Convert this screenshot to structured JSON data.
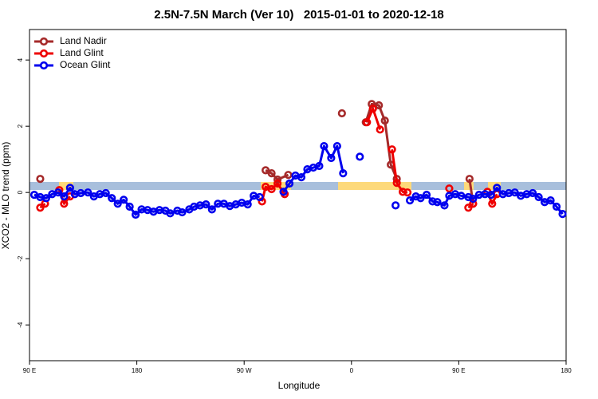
{
  "chart_data": {
    "type": "line",
    "title": "2.5N-7.5N March (Ver 10)   2015-01-01 to 2020-12-18",
    "xlabel": "Longitude",
    "ylabel": "XCO2 - MLO trend (ppm)",
    "xlim": [
      90,
      540
    ],
    "ylim": [
      -5.08,
      4.92
    ],
    "xticks": [
      {
        "value": 90,
        "label": "90 E"
      },
      180,
      {
        "value": 270,
        "label": "90 W"
      },
      {
        "value": 360,
        "label": "0"
      },
      {
        "value": 450,
        "label": "90 E"
      },
      {
        "value": 540,
        "label": "180"
      }
    ],
    "yticks": [
      -4,
      -2,
      0,
      2,
      4
    ],
    "legend": "topleft",
    "series": [
      {
        "name": "Land Nadir",
        "color": "#a52a2a",
        "x": [
          99,
          null,
          288,
          293,
          298,
          307,
          null,
          352,
          null,
          372,
          377,
          383,
          388,
          393,
          398,
          null,
          459,
          462
        ],
        "values": [
          0.41,
          null,
          0.67,
          0.58,
          0.39,
          0.53,
          null,
          2.39,
          null,
          2.12,
          2.67,
          2.63,
          2.17,
          0.84,
          0.41,
          null,
          0.41,
          -0.34
        ]
      },
      {
        "name": "Land Glint",
        "color": "#ee0000",
        "x": [
          99,
          103,
          null,
          115,
          119,
          124,
          null,
          285,
          288,
          293,
          298,
          304,
          null,
          373,
          378,
          384,
          null,
          394,
          398,
          403,
          407,
          null,
          442,
          null,
          458,
          462,
          null,
          474,
          478,
          482
        ],
        "values": [
          -0.46,
          -0.34,
          null,
          0.07,
          -0.34,
          -0.12,
          null,
          -0.27,
          0.17,
          0.1,
          0.27,
          -0.05,
          null,
          2.12,
          2.53,
          1.9,
          null,
          1.3,
          0.29,
          0.02,
          0.0,
          null,
          0.12,
          null,
          -0.46,
          -0.34,
          null,
          0.02,
          -0.34,
          -0.05
        ]
      },
      {
        "name": "Ocean Glint",
        "color": "#0000ee",
        "x": [
          94,
          99,
          104,
          109,
          114,
          119,
          124,
          128,
          133,
          139,
          144,
          149,
          154,
          159,
          164,
          169,
          174,
          179,
          184,
          189,
          194,
          199,
          204,
          208,
          214,
          218,
          224,
          228,
          233,
          238,
          243,
          248,
          253,
          258,
          263,
          268,
          273,
          278,
          283,
          null,
          303,
          308,
          313,
          318,
          323,
          328,
          333,
          337,
          343,
          348,
          353,
          null,
          367,
          null,
          397,
          null,
          409,
          414,
          418,
          423,
          428,
          432,
          438,
          442,
          447,
          452,
          458,
          462,
          467,
          472,
          477,
          482,
          487,
          492,
          497,
          502,
          507,
          512,
          517,
          522,
          527,
          532,
          537
        ],
        "values": [
          -0.07,
          -0.14,
          -0.17,
          -0.05,
          0.0,
          -0.12,
          0.14,
          -0.05,
          -0.02,
          0.0,
          -0.12,
          -0.05,
          -0.02,
          -0.17,
          -0.34,
          -0.22,
          -0.43,
          -0.67,
          -0.51,
          -0.53,
          -0.58,
          -0.53,
          -0.55,
          -0.63,
          -0.55,
          -0.6,
          -0.51,
          -0.43,
          -0.39,
          -0.36,
          -0.51,
          -0.34,
          -0.34,
          -0.41,
          -0.36,
          -0.31,
          -0.36,
          -0.1,
          -0.14,
          null,
          0.02,
          0.27,
          0.51,
          0.46,
          0.7,
          0.75,
          0.8,
          1.4,
          1.04,
          1.4,
          0.58,
          null,
          1.08,
          null,
          -0.39,
          null,
          -0.24,
          -0.12,
          -0.17,
          -0.07,
          -0.27,
          -0.29,
          -0.39,
          -0.1,
          -0.05,
          -0.1,
          -0.14,
          -0.19,
          -0.07,
          -0.05,
          -0.07,
          0.14,
          -0.05,
          -0.02,
          0.0,
          -0.1,
          -0.05,
          -0.02,
          -0.14,
          -0.29,
          -0.24,
          -0.43,
          -0.65
        ]
      }
    ]
  }
}
